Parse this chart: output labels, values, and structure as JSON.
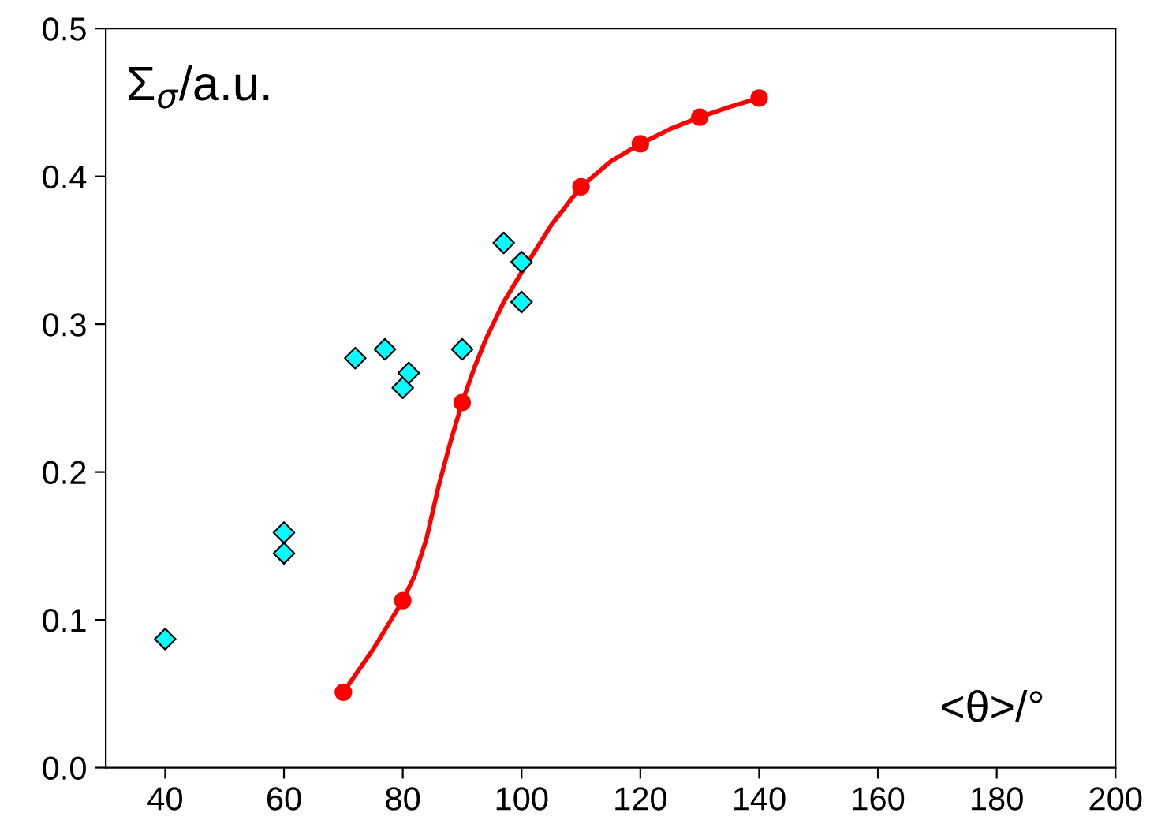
{
  "chart_data": {
    "type": "line",
    "xlabel": "<θ>/°",
    "ylabel": "Σ$_{σ}$/a.u.",
    "xlim": [
      30,
      200
    ],
    "xticks": [
      40,
      60,
      80,
      100,
      120,
      140,
      160,
      180,
      200
    ],
    "ylim": [
      0,
      0.5
    ],
    "yticks": [
      {
        "value": 0,
        "label": "0.0"
      },
      0.1,
      0.2,
      0.3,
      0.4,
      0.5
    ],
    "grid": false,
    "legend": false,
    "series": [
      {
        "type": "scatter",
        "marker": "diamond",
        "color": "#00ffff",
        "x": [
          40,
          60,
          60,
          72,
          77,
          80,
          81,
          90,
          97,
          100,
          100
        ],
        "values": [
          0.087,
          0.159,
          0.145,
          0.277,
          0.283,
          0.257,
          0.267,
          0.283,
          0.355,
          0.342,
          0.315
        ]
      },
      {
        "marker": "none",
        "line_style": "solid",
        "color": "#ff0000",
        "x": [
          70,
          75,
          80,
          82,
          84,
          86,
          88,
          90,
          92,
          94,
          97,
          100,
          105,
          110,
          115,
          120,
          125,
          130,
          135,
          140
        ],
        "values": [
          0.051,
          0.08,
          0.113,
          0.13,
          0.155,
          0.19,
          0.22,
          0.247,
          0.27,
          0.29,
          0.315,
          0.335,
          0.367,
          0.393,
          0.41,
          0.422,
          0.432,
          0.44,
          0.447,
          0.453
        ]
      },
      {
        "type": "scatter",
        "marker": "circle",
        "color": "#ff0000",
        "x": [
          70,
          80,
          90,
          110,
          120,
          130,
          140
        ],
        "values": [
          0.051,
          0.113,
          0.247,
          0.393,
          0.422,
          0.44,
          0.453
        ]
      }
    ]
  }
}
